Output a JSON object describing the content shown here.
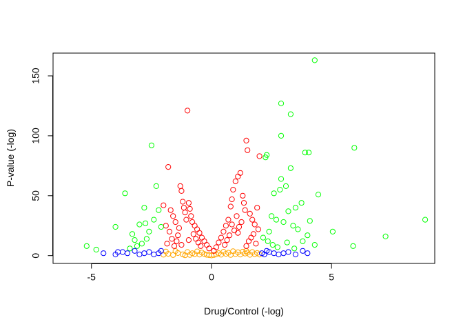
{
  "chart_data": {
    "type": "scatter",
    "title": "",
    "xlabel": "Drug/Control (-log)",
    "ylabel": "P-value (-log)",
    "xlim": [
      -6.6,
      9.3
    ],
    "ylim": [
      -6.5,
      169
    ],
    "x_ticks": [
      -5,
      0,
      5
    ],
    "y_ticks": [
      0,
      50,
      100,
      150
    ],
    "x_tick_labels": [
      "-5",
      "0",
      "5"
    ],
    "y_tick_labels": [
      "0",
      "50",
      "100",
      "150"
    ],
    "grid": false,
    "legend": "none",
    "marker": "open-circle",
    "series": [
      {
        "color": "#FFA500",
        "points": [
          [
            -2.0,
            0.8
          ],
          [
            -1.8,
            1.5
          ],
          [
            -1.6,
            0.5
          ],
          [
            -1.4,
            2.2
          ],
          [
            -1.2,
            1.1
          ],
          [
            -1.0,
            3.0
          ],
          [
            -0.9,
            0.6
          ],
          [
            -0.8,
            2.0
          ],
          [
            -0.7,
            1.2
          ],
          [
            -0.6,
            3.5
          ],
          [
            -0.5,
            0.9
          ],
          [
            -0.4,
            2.6
          ],
          [
            -0.3,
            1.4
          ],
          [
            -0.2,
            0.7
          ],
          [
            -0.1,
            0.4
          ],
          [
            0.0,
            0.2
          ],
          [
            0.1,
            0.5
          ],
          [
            0.2,
            1.0
          ],
          [
            0.3,
            2.1
          ],
          [
            0.4,
            0.8
          ],
          [
            0.5,
            3.2
          ],
          [
            0.6,
            1.5
          ],
          [
            0.7,
            2.4
          ],
          [
            0.8,
            0.6
          ],
          [
            0.9,
            3.6
          ],
          [
            1.0,
            1.3
          ],
          [
            1.1,
            2.8
          ],
          [
            1.2,
            0.9
          ],
          [
            1.3,
            3.3
          ],
          [
            1.4,
            1.7
          ],
          [
            1.5,
            2.5
          ],
          [
            1.6,
            0.7
          ],
          [
            1.7,
            3.0
          ],
          [
            1.8,
            1.2
          ],
          [
            1.9,
            2.2
          ],
          [
            2.0,
            0.9
          ],
          [
            -1.9,
            3.4
          ],
          [
            -1.5,
            3.8
          ],
          [
            -1.1,
            0.3
          ],
          [
            1.45,
            3.9
          ]
        ]
      },
      {
        "color": "#FF0000",
        "points": [
          [
            -1.0,
            121
          ],
          [
            -1.8,
            74
          ],
          [
            -2.0,
            42
          ],
          [
            -1.7,
            38
          ],
          [
            -1.6,
            33
          ],
          [
            -1.3,
            58
          ],
          [
            -1.25,
            54
          ],
          [
            -1.2,
            45
          ],
          [
            -1.15,
            40
          ],
          [
            -1.1,
            36
          ],
          [
            -0.95,
            44
          ],
          [
            -0.9,
            39
          ],
          [
            -0.85,
            33
          ],
          [
            -0.8,
            28
          ],
          [
            -0.7,
            25
          ],
          [
            -0.6,
            22
          ],
          [
            -0.5,
            19
          ],
          [
            -0.4,
            15
          ],
          [
            -0.3,
            12
          ],
          [
            -0.2,
            9
          ],
          [
            -0.1,
            6
          ],
          [
            -1.9,
            25
          ],
          [
            -1.75,
            20
          ],
          [
            -1.5,
            28
          ],
          [
            -1.4,
            17
          ],
          [
            -1.35,
            23
          ],
          [
            -1.05,
            30
          ],
          [
            -0.75,
            18
          ],
          [
            -0.65,
            14
          ],
          [
            -0.55,
            11
          ],
          [
            -1.45,
            12
          ],
          [
            -1.85,
            10
          ],
          [
            -1.65,
            14
          ],
          [
            -1.55,
            8
          ],
          [
            -1.25,
            9
          ],
          [
            -0.95,
            13
          ],
          [
            -0.45,
            8
          ],
          [
            1.45,
            96
          ],
          [
            1.5,
            88
          ],
          [
            1.1,
            66
          ],
          [
            1.2,
            69
          ],
          [
            1.0,
            62
          ],
          [
            0.9,
            55
          ],
          [
            0.85,
            47
          ],
          [
            0.8,
            41
          ],
          [
            1.3,
            50
          ],
          [
            1.35,
            44
          ],
          [
            1.4,
            38
          ],
          [
            0.7,
            30
          ],
          [
            0.6,
            25
          ],
          [
            0.5,
            20
          ],
          [
            0.4,
            15
          ],
          [
            0.3,
            11
          ],
          [
            0.2,
            7
          ],
          [
            0.1,
            4
          ],
          [
            1.6,
            35
          ],
          [
            1.7,
            30
          ],
          [
            1.8,
            26
          ],
          [
            1.9,
            40
          ],
          [
            2.0,
            83
          ],
          [
            1.95,
            22
          ],
          [
            1.75,
            18
          ],
          [
            1.65,
            15
          ],
          [
            1.55,
            12
          ],
          [
            1.25,
            28
          ],
          [
            1.15,
            24
          ],
          [
            1.05,
            33
          ],
          [
            0.95,
            21
          ],
          [
            0.75,
            17
          ],
          [
            0.65,
            13
          ],
          [
            0.55,
            9
          ],
          [
            1.85,
            10
          ],
          [
            1.45,
            8
          ],
          [
            1.1,
            19
          ],
          [
            0.85,
            26
          ]
        ]
      },
      {
        "color": "#00FF00",
        "points": [
          [
            -5.2,
            8
          ],
          [
            -4.8,
            5
          ],
          [
            -4.0,
            24
          ],
          [
            -3.6,
            52
          ],
          [
            -3.3,
            18
          ],
          [
            -3.0,
            26
          ],
          [
            -2.8,
            40
          ],
          [
            -2.5,
            92
          ],
          [
            -2.3,
            58
          ],
          [
            -2.2,
            38
          ],
          [
            -2.6,
            20
          ],
          [
            -2.7,
            14
          ],
          [
            -2.9,
            10
          ],
          [
            -3.1,
            8
          ],
          [
            -2.4,
            30
          ],
          [
            -2.1,
            24
          ],
          [
            -3.4,
            6
          ],
          [
            -2.75,
            27
          ],
          [
            -3.2,
            13
          ],
          [
            4.3,
            163
          ],
          [
            2.9,
            127
          ],
          [
            3.3,
            118
          ],
          [
            2.9,
            100
          ],
          [
            3.9,
            86
          ],
          [
            4.05,
            86
          ],
          [
            2.3,
            84
          ],
          [
            2.25,
            82
          ],
          [
            3.3,
            73
          ],
          [
            5.95,
            90
          ],
          [
            2.9,
            64
          ],
          [
            3.1,
            58
          ],
          [
            2.85,
            55
          ],
          [
            2.6,
            52
          ],
          [
            4.45,
            51
          ],
          [
            3.75,
            44
          ],
          [
            3.5,
            40
          ],
          [
            3.2,
            37
          ],
          [
            2.5,
            33
          ],
          [
            2.7,
            30
          ],
          [
            3.0,
            28
          ],
          [
            4.1,
            29
          ],
          [
            3.4,
            25
          ],
          [
            3.6,
            22
          ],
          [
            2.4,
            20
          ],
          [
            5.05,
            20
          ],
          [
            4.0,
            17
          ],
          [
            3.8,
            12
          ],
          [
            4.3,
            9
          ],
          [
            8.9,
            30
          ],
          [
            7.25,
            16
          ],
          [
            5.9,
            8
          ],
          [
            2.15,
            15
          ],
          [
            2.35,
            12
          ],
          [
            2.55,
            9
          ],
          [
            2.75,
            7
          ],
          [
            3.15,
            11
          ],
          [
            3.45,
            6
          ]
        ]
      },
      {
        "color": "#0000FF",
        "points": [
          [
            -4.5,
            2
          ],
          [
            -4.0,
            1
          ],
          [
            -3.7,
            3
          ],
          [
            -3.5,
            2
          ],
          [
            -3.2,
            4
          ],
          [
            -3.0,
            1
          ],
          [
            -2.8,
            2
          ],
          [
            -2.6,
            3
          ],
          [
            -2.4,
            1
          ],
          [
            -2.2,
            2
          ],
          [
            -2.1,
            4
          ],
          [
            -3.9,
            3
          ],
          [
            2.1,
            2
          ],
          [
            2.2,
            1
          ],
          [
            2.4,
            3
          ],
          [
            2.6,
            2
          ],
          [
            2.8,
            1
          ],
          [
            3.0,
            2
          ],
          [
            3.2,
            3
          ],
          [
            3.5,
            1
          ],
          [
            3.8,
            4
          ],
          [
            4.0,
            2
          ],
          [
            2.3,
            4
          ]
        ]
      }
    ]
  }
}
